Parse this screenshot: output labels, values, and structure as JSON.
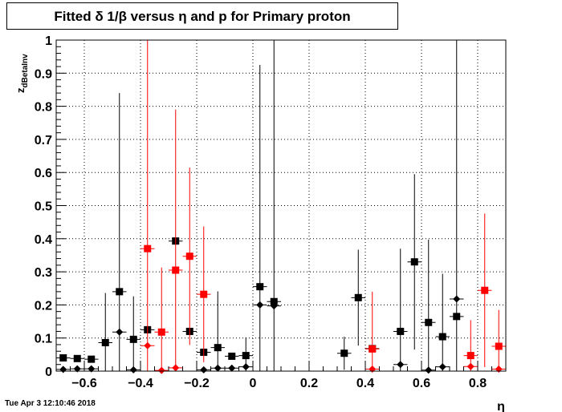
{
  "chart_data": {
    "type": "scatter",
    "title": "Fitted δ 1/β versus η and p for Primary proton",
    "xlabel": "η",
    "ylabel_main": "z",
    "ylabel_sub": "dBetaInv",
    "xlim": [
      -0.7,
      0.9
    ],
    "ylim": [
      0,
      1
    ],
    "grid": true,
    "x_ticks": [
      {
        "value": -0.6,
        "label": "−0.6"
      },
      {
        "value": -0.4,
        "label": "−0.4"
      },
      {
        "value": -0.2,
        "label": "−0.2"
      },
      {
        "value": 0,
        "label": "0"
      },
      {
        "value": 0.2,
        "label": "0.2"
      },
      {
        "value": 0.4,
        "label": "0.4"
      },
      {
        "value": 0.6,
        "label": "0.6"
      },
      {
        "value": 0.8,
        "label": "0.8"
      }
    ],
    "y_ticks": [
      {
        "value": 0,
        "label": "0"
      },
      {
        "value": 0.1,
        "label": "0.1"
      },
      {
        "value": 0.2,
        "label": "0.2"
      },
      {
        "value": 0.3,
        "label": "0.3"
      },
      {
        "value": 0.4,
        "label": "0.4"
      },
      {
        "value": 0.5,
        "label": "0.5"
      },
      {
        "value": 0.6,
        "label": "0.6"
      },
      {
        "value": 0.7,
        "label": "0.7"
      },
      {
        "value": 0.8,
        "label": "0.8"
      },
      {
        "value": 0.9,
        "label": "0.9"
      },
      {
        "value": 1,
        "label": "1"
      }
    ],
    "series": [
      {
        "color": "#000000",
        "marker": "square",
        "points": [
          {
            "x": -0.675,
            "y": 0.04,
            "err": 0
          },
          {
            "x": -0.625,
            "y": 0.038,
            "err": 0
          },
          {
            "x": -0.575,
            "y": 0.036,
            "err": 0
          },
          {
            "x": -0.525,
            "y": 0.086,
            "err": 0.15
          },
          {
            "x": -0.475,
            "y": 0.24,
            "err": 0.6
          },
          {
            "x": -0.425,
            "y": 0.096,
            "err": 0.13
          },
          {
            "x": -0.375,
            "y": 0.125,
            "err": 0
          },
          {
            "x": -0.275,
            "y": 0.393,
            "err": 0
          },
          {
            "x": -0.225,
            "y": 0.12,
            "err": 0
          },
          {
            "x": -0.175,
            "y": 0.057,
            "err": 0
          },
          {
            "x": -0.125,
            "y": 0.071,
            "err": 0.17
          },
          {
            "x": -0.075,
            "y": 0.045,
            "err": 0
          },
          {
            "x": -0.025,
            "y": 0.047,
            "err": 0.055
          },
          {
            "x": 0.025,
            "y": 0.255,
            "err": 0.67
          },
          {
            "x": 0.075,
            "y": 0.21,
            "err": 0.79
          },
          {
            "x": 0.325,
            "y": 0.054,
            "err": 0.05
          },
          {
            "x": 0.375,
            "y": 0.222,
            "err": 0.145
          },
          {
            "x": 0.425,
            "y": 0.068,
            "err": 0
          },
          {
            "x": 0.525,
            "y": 0.12,
            "err": 0.25
          },
          {
            "x": 0.575,
            "y": 0.33,
            "err": 0.265
          },
          {
            "x": 0.625,
            "y": 0.147,
            "err": 0.25
          },
          {
            "x": 0.675,
            "y": 0.104,
            "err": 0.19
          },
          {
            "x": 0.725,
            "y": 0.165,
            "err": 0.835
          }
        ]
      },
      {
        "color": "#000000",
        "marker": "diamond",
        "points": [
          {
            "x": -0.675,
            "y": 0.005,
            "err": 0
          },
          {
            "x": -0.625,
            "y": 0.007,
            "err": 0
          },
          {
            "x": -0.575,
            "y": 0.007,
            "err": 0
          },
          {
            "x": -0.475,
            "y": 0.118,
            "err": 0
          },
          {
            "x": -0.425,
            "y": 0.004,
            "err": 0
          },
          {
            "x": -0.175,
            "y": 0.004,
            "err": 0
          },
          {
            "x": -0.125,
            "y": 0.009,
            "err": 0
          },
          {
            "x": -0.075,
            "y": 0.009,
            "err": 0
          },
          {
            "x": -0.025,
            "y": 0.013,
            "err": 0
          },
          {
            "x": 0.025,
            "y": 0.2,
            "err": 0
          },
          {
            "x": 0.075,
            "y": 0.197,
            "err": 0
          },
          {
            "x": 0.525,
            "y": 0.02,
            "err": 0
          },
          {
            "x": 0.625,
            "y": 0.003,
            "err": 0
          },
          {
            "x": 0.675,
            "y": 0.013,
            "err": 0
          },
          {
            "x": 0.725,
            "y": 0.218,
            "err": 0
          }
        ]
      },
      {
        "color": "#ff0000",
        "marker": "square",
        "points": [
          {
            "x": -0.375,
            "y": 0.37,
            "err": 0.63
          },
          {
            "x": -0.325,
            "y": 0.118,
            "err": 0.195
          },
          {
            "x": -0.275,
            "y": 0.305,
            "err": 0.485
          },
          {
            "x": -0.225,
            "y": 0.347,
            "err": 0.268
          },
          {
            "x": -0.175,
            "y": 0.232,
            "err": 0.205
          },
          {
            "x": 0.425,
            "y": 0.067,
            "err": 0.173
          },
          {
            "x": 0.775,
            "y": 0.047,
            "err": 0.107
          },
          {
            "x": 0.825,
            "y": 0.244,
            "err": 0.232
          },
          {
            "x": 0.875,
            "y": 0.075,
            "err": 0.11
          }
        ]
      },
      {
        "color": "#ff0000",
        "marker": "diamond",
        "points": [
          {
            "x": -0.375,
            "y": 0.077,
            "err": 0
          },
          {
            "x": -0.325,
            "y": 0.002,
            "err": 0
          },
          {
            "x": -0.275,
            "y": 0.01,
            "err": 0
          },
          {
            "x": 0.425,
            "y": 0.006,
            "err": 0
          },
          {
            "x": 0.775,
            "y": 0.014,
            "err": 0
          },
          {
            "x": 0.875,
            "y": 0.006,
            "err": 0
          }
        ]
      }
    ]
  },
  "timestamp": "Tue Apr  3 12:10:46 2018"
}
